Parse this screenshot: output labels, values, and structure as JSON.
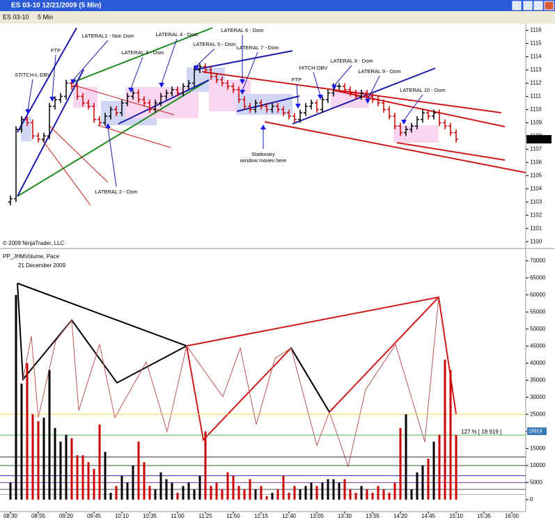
{
  "window_title": "ES 03-10  12/21/2009 (5 Min)",
  "toolbar": {
    "instrument": "ES 03-10",
    "period": "5 Min"
  },
  "chart_data": [
    {
      "type": "ohlc",
      "copyright": "© 2009 NinjaTrader, LLC",
      "open": [
        1103.0,
        1103.25,
        1108.5,
        1109.25,
        1109.0,
        1108.0,
        1107.75,
        1108.0,
        1110.25,
        1110.75,
        1111.0,
        1112.0,
        1111.75,
        1111.0,
        1110.5,
        1110.25,
        1109.25,
        1109.0,
        1109.5,
        1110.0,
        1109.75,
        1110.5,
        1111.0,
        1111.25,
        1110.75,
        1110.5,
        1110.0,
        1110.5,
        1111.0,
        1111.25,
        1111.5,
        1111.25,
        1111.75,
        1112.0,
        1113.0,
        1113.25,
        1113.0,
        1112.5,
        1112.25,
        1112.0,
        1111.75,
        1111.5,
        1110.75,
        1110.25,
        1110.0,
        1110.5,
        1110.25,
        1110.0,
        1110.25,
        1110.0,
        1109.75,
        1109.5,
        1109.25,
        1109.75,
        1110.25,
        1110.5,
        1110.0,
        1110.75,
        1111.25,
        1111.75,
        1111.75,
        1111.5,
        1111.25,
        1111.0,
        1111.25,
        1111.0,
        1110.75,
        1110.5,
        1110.0,
        1109.5,
        1108.75,
        1108.25,
        1108.5,
        1108.75,
        1109.25,
        1109.75,
        1109.5,
        1109.75,
        1109.0,
        1108.75,
        1108.25
      ],
      "high": [
        1103.5,
        1108.75,
        1109.5,
        1109.5,
        1109.25,
        1108.25,
        1108.25,
        1110.5,
        1111.0,
        1111.25,
        1112.25,
        1112.25,
        1112.0,
        1111.25,
        1110.75,
        1110.5,
        1109.5,
        1109.75,
        1110.25,
        1110.25,
        1110.75,
        1111.25,
        1111.5,
        1111.5,
        1111.0,
        1110.75,
        1110.75,
        1111.25,
        1111.5,
        1111.75,
        1111.75,
        1112.0,
        1112.25,
        1113.25,
        1113.5,
        1113.5,
        1113.25,
        1112.75,
        1112.5,
        1112.25,
        1112.0,
        1111.75,
        1111.0,
        1110.5,
        1110.75,
        1110.75,
        1110.5,
        1110.5,
        1110.5,
        1110.25,
        1110.0,
        1109.75,
        1110.0,
        1110.5,
        1110.75,
        1110.75,
        1111.0,
        1111.5,
        1112.0,
        1112.0,
        1112.0,
        1111.75,
        1111.5,
        1111.5,
        1111.5,
        1111.25,
        1111.0,
        1110.75,
        1110.25,
        1109.75,
        1109.0,
        1108.75,
        1109.0,
        1109.5,
        1110.0,
        1110.0,
        1110.0,
        1110.0,
        1109.25,
        1109.0,
        1108.5
      ],
      "low": [
        1102.75,
        1103.0,
        1108.25,
        1108.75,
        1107.75,
        1107.5,
        1107.5,
        1107.75,
        1110.0,
        1110.5,
        1110.75,
        1111.5,
        1110.75,
        1110.25,
        1110.0,
        1109.0,
        1108.75,
        1108.75,
        1109.25,
        1109.5,
        1109.5,
        1110.25,
        1110.75,
        1110.5,
        1110.25,
        1109.75,
        1109.75,
        1110.25,
        1110.75,
        1111.0,
        1111.0,
        1111.0,
        1111.5,
        1111.75,
        1112.75,
        1112.75,
        1112.25,
        1112.0,
        1111.75,
        1111.5,
        1111.25,
        1110.5,
        1110.0,
        1109.75,
        1109.75,
        1110.0,
        1109.75,
        1109.75,
        1109.75,
        1109.5,
        1109.25,
        1109.0,
        1109.0,
        1109.5,
        1110.0,
        1109.75,
        1109.75,
        1110.5,
        1111.0,
        1111.5,
        1111.25,
        1111.0,
        1110.75,
        1110.75,
        1110.75,
        1110.5,
        1110.25,
        1109.75,
        1109.25,
        1108.5,
        1108.0,
        1108.0,
        1108.25,
        1108.5,
        1109.0,
        1109.25,
        1109.25,
        1108.75,
        1108.5,
        1108.0,
        1107.5
      ],
      "close": [
        1103.25,
        1108.5,
        1109.25,
        1109.0,
        1108.0,
        1107.75,
        1108.0,
        1110.25,
        1110.75,
        1111.0,
        1112.0,
        1111.75,
        1111.0,
        1110.5,
        1110.25,
        1109.25,
        1109.0,
        1109.5,
        1110.0,
        1109.75,
        1110.5,
        1111.0,
        1111.25,
        1110.75,
        1110.5,
        1110.0,
        1110.5,
        1111.0,
        1111.25,
        1111.5,
        1111.25,
        1111.75,
        1112.0,
        1113.0,
        1113.25,
        1113.0,
        1112.5,
        1112.25,
        1112.0,
        1111.75,
        1111.5,
        1110.75,
        1110.25,
        1110.0,
        1110.5,
        1110.25,
        1110.0,
        1110.25,
        1110.0,
        1109.75,
        1109.5,
        1109.25,
        1109.75,
        1110.25,
        1110.5,
        1110.0,
        1110.75,
        1111.25,
        1111.75,
        1111.75,
        1111.5,
        1111.25,
        1111.0,
        1111.25,
        1111.0,
        1110.75,
        1110.5,
        1110.0,
        1109.5,
        1108.75,
        1108.25,
        1108.5,
        1108.75,
        1109.25,
        1109.75,
        1109.5,
        1109.75,
        1109.0,
        1108.75,
        1108.25,
        1107.75
      ],
      "up_color": "#000000",
      "down_color": "#cc0000",
      "ylim": [
        1099.75,
        1116.5
      ],
      "yticks": [
        1100,
        1101,
        1102,
        1103,
        1104,
        1105,
        1106,
        1107,
        1108,
        1109,
        1110,
        1111,
        1112,
        1113,
        1114,
        1115,
        1116
      ],
      "last_price": 1107.75,
      "annotations": [
        "STITCH-L-DBV",
        "FTP",
        "LATERAL1 - Non Dom",
        "LATERAL 3 - Dom",
        "LATERAL 4 - Dom",
        "LATERAL 5 - Dom",
        "LATERAL 6 - Dom",
        "LATERAL 7 - Dom",
        "FTP",
        "HITCH-DBV",
        "LATERAL 8 - Dom",
        "LATERAL 9 - Dom",
        "LATERAL 10 - Dom",
        "LATERAL 2 - Dom",
        "Stationary",
        "window moves here"
      ],
      "x_labels": [
        "08:30",
        "08:55",
        "09:20",
        "09:45",
        "10:10",
        "10:35",
        "11:00",
        "11:25",
        "11:50",
        "12:15",
        "12:40",
        "13:05",
        "13:30",
        "13:55",
        "14:20",
        "14:45",
        "15:10",
        "15:35",
        "16:00"
      ]
    },
    {
      "type": "bar",
      "title": "PP_JHMVolume, Pace",
      "subtitle": "21 December 2009",
      "values": [
        5000,
        60000,
        34000,
        40000,
        25000,
        23000,
        24000,
        38000,
        21000,
        17000,
        19000,
        18000,
        13000,
        13000,
        11000,
        9000,
        22000,
        14000,
        2000,
        4000,
        7000,
        5000,
        10000,
        17000,
        11000,
        4000,
        3000,
        8000,
        6000,
        5000,
        2000,
        4000,
        5000,
        3000,
        7000,
        20000,
        4000,
        5000,
        3000,
        8000,
        7000,
        4000,
        3000,
        6000,
        3000,
        4000,
        1000,
        2000,
        3000,
        7000,
        2000,
        4000,
        3000,
        4000,
        5000,
        4000,
        5000,
        6000,
        6000,
        5000,
        6000,
        3000,
        2000,
        4000,
        3000,
        2000,
        4000,
        3000,
        2000,
        5000,
        21000,
        25000,
        3000,
        8000,
        10000,
        12000,
        17000,
        19000,
        41000,
        38000,
        18919
      ],
      "ylim": [
        -3500,
        73000
      ],
      "yticks": [
        0,
        5000,
        10000,
        15000,
        20000,
        25000,
        30000,
        35000,
        40000,
        45000,
        50000,
        55000,
        60000,
        65000,
        70000
      ],
      "levels": [
        {
          "value": 25000,
          "color": "#e8d44a"
        },
        {
          "value": 18919,
          "color": "#4caf50"
        },
        {
          "value": 12500,
          "color": "#333333"
        },
        {
          "value": 10000,
          "color": "#2e5e2e"
        },
        {
          "value": 7000,
          "color": "#3333aa"
        },
        {
          "value": 5000,
          "color": "#7a3a9a"
        },
        {
          "value": 3000,
          "color": "#555555"
        },
        {
          "value": 1500,
          "color": "#b0b0b0"
        }
      ],
      "level_label": "127 % [ 18 919 ]",
      "last_value": "18919"
    }
  ]
}
